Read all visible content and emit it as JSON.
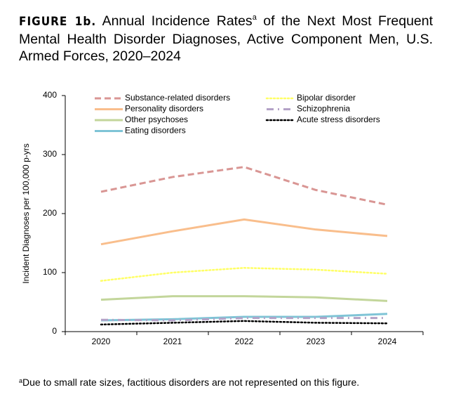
{
  "figure_label": "FIGURE 1b.",
  "title": "Annual Incidence Rates",
  "title_marker": "a",
  "title_rest": " of the Next Most Frequent Mental Health Disorder Diagnoses, Active Component Men, U.S. Armed Forces, 2020–2024",
  "footnote_marker": "a",
  "footnote": "Due to small rate sizes, factitious disorders are not represented on this figure.",
  "chart_data": {
    "type": "line",
    "y_label": "Incident Diagnoses per 100,000 p-yrs",
    "categories": [
      "2020",
      "2021",
      "2022",
      "2023",
      "2024"
    ],
    "ylim": [
      0,
      400
    ],
    "yticks": [
      0,
      100,
      200,
      300,
      400
    ],
    "series": [
      {
        "name": "Substance-related disorders",
        "color": "#d99694",
        "style": "dashed",
        "values": [
          237,
          262,
          279,
          240,
          215
        ]
      },
      {
        "name": "Personality disorders",
        "color": "#f9be8c",
        "style": "solid",
        "values": [
          148,
          170,
          190,
          173,
          162
        ]
      },
      {
        "name": "Other psychoses",
        "color": "#c3d69b",
        "style": "solid",
        "values": [
          54,
          60,
          60,
          58,
          52
        ]
      },
      {
        "name": "Eating disorders",
        "color": "#7fc4d6",
        "style": "solid",
        "values": [
          19,
          21,
          25,
          25,
          30
        ]
      },
      {
        "name": "Bipolar disorder",
        "color": "#ffff66",
        "style": "dotted",
        "values": [
          86,
          100,
          108,
          105,
          98
        ]
      },
      {
        "name": "Schizophrenia",
        "color": "#b3a2c7",
        "style": "dashdot",
        "values": [
          20,
          19,
          23,
          23,
          23
        ]
      },
      {
        "name": "Acute stress disorders",
        "color": "#000000",
        "style": "dotted",
        "values": [
          12,
          15,
          18,
          15,
          14
        ]
      }
    ]
  }
}
